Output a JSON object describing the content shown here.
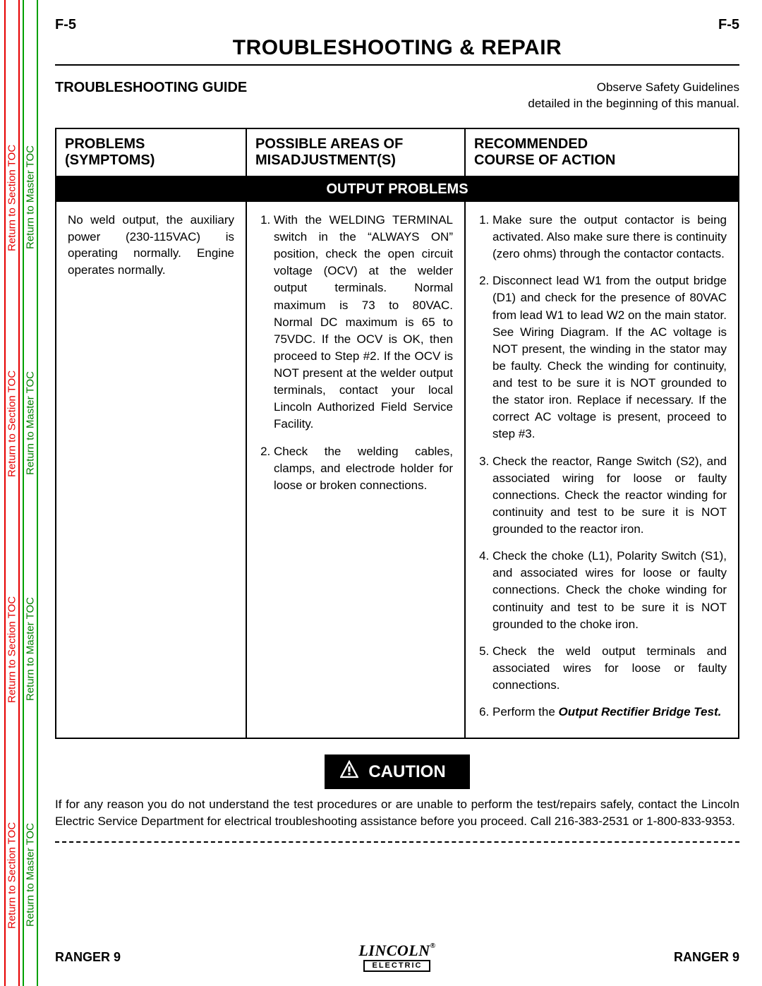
{
  "page_code": "F-5",
  "title": "TROUBLESHOOTING & REPAIR",
  "guide_heading": "TROUBLESHOOTING GUIDE",
  "safety_note_line1": "Observe Safety Guidelines",
  "safety_note_line2": "detailed in the beginning of this manual.",
  "columns": {
    "c1a": "PROBLEMS",
    "c1b": "(SYMPTOMS)",
    "c2a": "POSSIBLE AREAS OF",
    "c2b": "MISADJUSTMENT(S)",
    "c3a": "RECOMMENDED",
    "c3b": "COURSE OF ACTION"
  },
  "band": "OUTPUT PROBLEMS",
  "symptom": "No weld output, the auxiliary power (230-115VAC) is operating normally.  Engine operates normally.",
  "misadj": [
    "With the WELDING TERMINAL switch in the “ALWAYS ON” position, check the open circuit voltage (OCV) at the welder output terminals.  Normal maximum is 73 to 80VAC.  Normal DC maximum is 65 to 75VDC.  If the OCV is OK, then proceed to Step #2.  If the OCV is NOT present at the welder output terminals, contact your local Lincoln Authorized Field Service Facility.",
    "Check the welding cables, clamps, and electrode holder for loose or broken connections."
  ],
  "actions": [
    "Make sure the output contactor is being activated.  Also make sure there is continuity (zero ohms) through the contactor contacts.",
    "Disconnect lead W1 from the output bridge (D1) and check for the presence of 80VAC from lead W1 to lead W2 on the main stator.  See Wiring Diagram.  If the AC voltage is NOT present, the winding in the stator may be faulty.  Check the winding for continuity, and test to be sure it is NOT grounded to the stator iron.  Replace if necessary.  If the correct AC voltage is present, proceed to step #3.",
    "Check the reactor, Range Switch (S2), and associated wiring for loose or faulty connections.  Check the reactor winding for continuity and test to be sure it is NOT grounded to the reactor iron.",
    "Check the choke (L1), Polarity Switch (S1), and associated wires for loose or faulty connections.  Check the choke winding for continuity and test to be sure it is NOT grounded to the choke iron.",
    "Check the weld output terminals and associated wires for loose or faulty connections."
  ],
  "action6_prefix": "Perform the ",
  "action6_bold": "Output Rectifier Bridge Test.",
  "caution_label": "CAUTION",
  "caution_body": "If for any reason you do not understand the test procedures or are unable to perform the test/repairs safely, contact the Lincoln Electric Service Department for electrical troubleshooting assistance before you proceed.  Call 216-383-2531 or 1-800-833-9353.",
  "footer_model": "RANGER 9",
  "logo_top": "LINCOLN",
  "logo_reg": "®",
  "logo_bot": "ELECTRIC",
  "side_tabs": {
    "section": "Return to Section TOC",
    "master": "Return to Master TOC"
  },
  "tab_positions": [
    1115,
    795,
    475,
    155
  ],
  "colors": {
    "red": "#e60000",
    "green": "#00a000",
    "black": "#000000",
    "white": "#ffffff"
  }
}
